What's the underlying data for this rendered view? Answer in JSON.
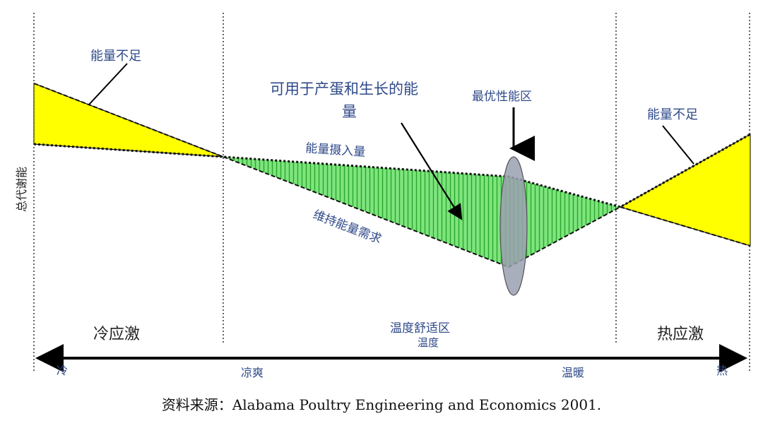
{
  "labels": {
    "energy_short_left": "能量不足",
    "energy_short_right": "能量不足",
    "available_energy_line1": "可用于产蛋和生长的能",
    "available_energy_line2": "量",
    "optimal_zone": "最优性能区",
    "energy_intake": "能量摄入量",
    "maintenance": "维持能量需求",
    "y_axis": "总代谢能",
    "cold_stress": "冷应激",
    "heat_stress": "热应激",
    "comfort_zone": "温度舒适区",
    "temperature": "温度",
    "axis_cold": "冷",
    "axis_cool": "凉爽",
    "axis_warm": "温暖",
    "axis_hot": "热"
  },
  "caption": "资料来源：Alabama Poultry Engineering and Economics 2001.",
  "colors": {
    "shortage_fill": "#ffff00",
    "surplus_fill": "#6fe06f",
    "label_blue": "#2f4a8a",
    "ellipse_fill": "#9aa0b0"
  }
}
